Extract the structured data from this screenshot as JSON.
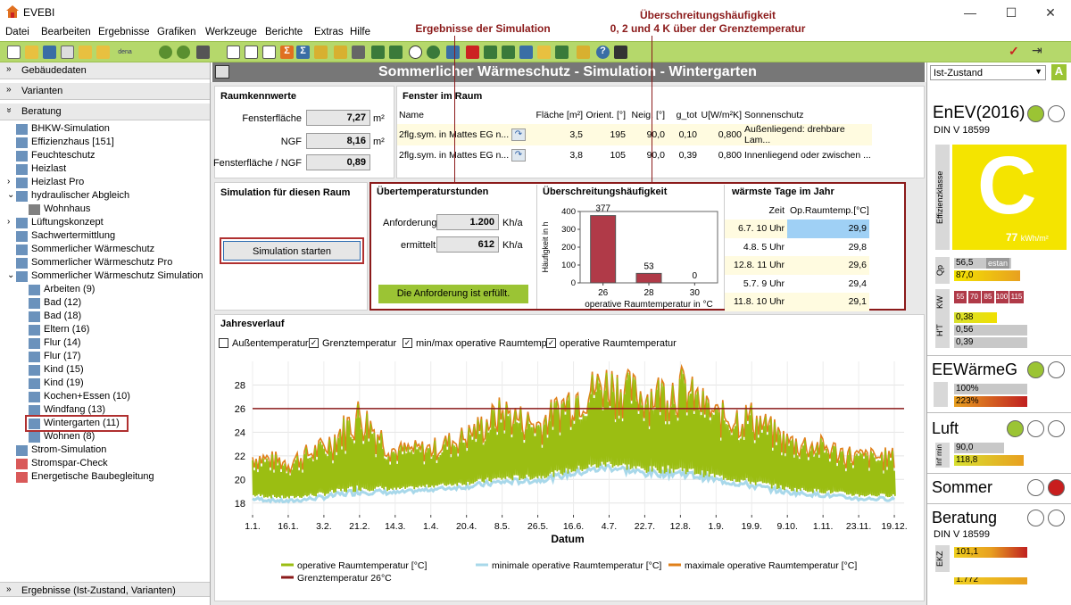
{
  "app": {
    "title": "EVEBI"
  },
  "menu": [
    "Datei",
    "Bearbeiten",
    "Ergebnisse",
    "Grafiken",
    "Werkzeuge",
    "Berichte",
    "Extras",
    "Hilfe"
  ],
  "sidebar": {
    "sections": {
      "gebaeudedaten": "Gebäudedaten",
      "varianten": "Varianten",
      "beratung": "Beratung",
      "ergebnisse": "Ergebnisse (Ist-Zustand, Varianten)"
    },
    "items": [
      {
        "label": "BHKW-Simulation"
      },
      {
        "label": "Effizienzhaus [151]"
      },
      {
        "label": "Feuchteschutz"
      },
      {
        "label": "Heizlast"
      },
      {
        "label": "Heizlast Pro"
      },
      {
        "label": "hydraulischer Abgleich"
      },
      {
        "label": "Wohnhaus"
      },
      {
        "label": "Lüftungskonzept"
      },
      {
        "label": "Sachwertermittlung"
      },
      {
        "label": "Sommerlicher Wärmeschutz"
      },
      {
        "label": "Sommerlicher Wärmeschutz Pro"
      },
      {
        "label": "Sommerlicher Wärmeschutz Simulation"
      },
      {
        "label": "Arbeiten (9)"
      },
      {
        "label": "Bad (12)"
      },
      {
        "label": "Bad (18)"
      },
      {
        "label": "Eltern (16)"
      },
      {
        "label": "Flur (14)"
      },
      {
        "label": "Flur (17)"
      },
      {
        "label": "Kind (15)"
      },
      {
        "label": "Kind (19)"
      },
      {
        "label": "Kochen+Essen (10)"
      },
      {
        "label": "Windfang (13)"
      },
      {
        "label": "Wintergarten (11)"
      },
      {
        "label": "Wohnen (8)"
      },
      {
        "label": "Strom-Simulation"
      },
      {
        "label": "Stromspar-Check"
      },
      {
        "label": "Energetische Baubegleitung"
      }
    ]
  },
  "main": {
    "title": "Sommerlicher Wärmeschutz - Simulation - Wintergarten",
    "annotations": {
      "ergebnisse": "Ergebnisse der Simulation",
      "haeufigkeit_line1": "Überschreitungshäufigkeit",
      "haeufigkeit_line2": "0, 2 und 4 K über der Grenztemperatur"
    },
    "raumkennwerte": {
      "title": "Raumkennwerte",
      "rows": [
        {
          "label": "Fensterfläche",
          "value": "7,27",
          "unit": "m²"
        },
        {
          "label": "NGF",
          "value": "8,16",
          "unit": "m²"
        },
        {
          "label": "Fensterfläche / NGF",
          "value": "0,89",
          "unit": ""
        }
      ]
    },
    "fenster": {
      "title": "Fenster im Raum",
      "headers": [
        "Name",
        "",
        "Fläche [m²]",
        "Orient. [°]",
        "Neig. [°]",
        "g_tot",
        "U[W/m²K]",
        "Sonnenschutz"
      ],
      "rows": [
        [
          "2flg.sym. in Mattes EG n...",
          "",
          "3,5",
          "195",
          "90,0",
          "0,10",
          "0,800",
          "Außenliegend: drehbare Lam..."
        ],
        [
          "2flg.sym. in Mattes EG n...",
          "",
          "3,8",
          "105",
          "90,0",
          "0,39",
          "0,800",
          "Innenliegend oder zwischen ..."
        ]
      ]
    },
    "simulation": {
      "title": "Simulation für diesen Raum",
      "button": "Simulation starten"
    },
    "uebertemperatur": {
      "title": "Übertemperaturstunden",
      "anforderung_label": "Anforderung",
      "anforderung_value": "1.200",
      "anforderung_unit": "Kh/a",
      "ermittelt_label": "ermittelt",
      "ermittelt_value": "612",
      "ermittelt_unit": "Kh/a",
      "status": "Die Anforderung ist erfüllt."
    },
    "haeufigkeit": {
      "title": "Überschreitungshäufigkeit"
    },
    "waermste": {
      "title": "wärmste Tage im Jahr",
      "headers": [
        "Zeit",
        "Op.Raumtemp.[°C]"
      ],
      "rows": [
        [
          "6.7. 10 Uhr",
          "29,9"
        ],
        [
          "4.8. 5 Uhr",
          "29,8"
        ],
        [
          "12.8. 11 Uhr",
          "29,6"
        ],
        [
          "5.7. 9 Uhr",
          "29,4"
        ],
        [
          "11.8. 10 Uhr",
          "29,1"
        ]
      ]
    },
    "jahresverlauf": {
      "title": "Jahresverlauf",
      "checkboxes": [
        {
          "label": "Außentemperatur",
          "checked": false
        },
        {
          "label": "Grenztemperatur",
          "checked": true
        },
        {
          "label": "min/max operative Raumtemp.",
          "checked": true
        },
        {
          "label": "operative Raumtemperatur",
          "checked": true
        }
      ]
    }
  },
  "chart_data": [
    {
      "type": "bar",
      "categories": [
        "26",
        "28",
        "30"
      ],
      "values": [
        377,
        53,
        0
      ],
      "xlabel": "operative Raumtemperatur in °C",
      "ylabel": "Häufigkeit in h",
      "ylim": [
        0,
        400
      ],
      "yticks": [
        "0",
        "100",
        "200",
        "300",
        "400"
      ],
      "color": "#b03a48",
      "data_labels": [
        "377",
        "53",
        "0"
      ]
    },
    {
      "type": "line",
      "xlabel": "Datum",
      "ylabel": "",
      "ylim": [
        17,
        30
      ],
      "yticks": [
        "18",
        "20",
        "22",
        "24",
        "26",
        "28"
      ],
      "xticks": [
        "1.1.",
        "16.1.",
        "3.2.",
        "21.2.",
        "14.3.",
        "1.4.",
        "20.4.",
        "8.5.",
        "26.5.",
        "16.6.",
        "4.7.",
        "22.7.",
        "12.8.",
        "1.9.",
        "19.9.",
        "9.10.",
        "1.11.",
        "23.11.",
        "19.12."
      ],
      "grenztemperatur": 26,
      "series": [
        {
          "name": "operative Raumtemperatur [°C]",
          "color": "#9bbe12"
        },
        {
          "name": "minimale operative Raumtemperatur [°C]",
          "color": "#a8d8ea"
        },
        {
          "name": "maximale operative Raumtemperatur [°C]",
          "color": "#e0801a"
        },
        {
          "name": "Grenztemperatur 26°C",
          "color": "#8b1a1a"
        }
      ],
      "profile": [
        {
          "x": "1.1.",
          "min": 18.5,
          "max": 22.5
        },
        {
          "x": "16.1.",
          "min": 18.3,
          "max": 22.0
        },
        {
          "x": "3.2.",
          "min": 18.6,
          "max": 23.5
        },
        {
          "x": "21.2.",
          "min": 19.0,
          "max": 27.0
        },
        {
          "x": "14.3.",
          "min": 19.0,
          "max": 23.0
        },
        {
          "x": "1.4.",
          "min": 19.3,
          "max": 23.2
        },
        {
          "x": "20.4.",
          "min": 19.5,
          "max": 24.5
        },
        {
          "x": "8.5.",
          "min": 19.8,
          "max": 27.0
        },
        {
          "x": "26.5.",
          "min": 20.0,
          "max": 25.5
        },
        {
          "x": "16.6.",
          "min": 20.5,
          "max": 28.5
        },
        {
          "x": "4.7.",
          "min": 21.0,
          "max": 29.9
        },
        {
          "x": "22.7.",
          "min": 20.5,
          "max": 28.5
        },
        {
          "x": "12.8.",
          "min": 20.5,
          "max": 29.6
        },
        {
          "x": "1.9.",
          "min": 20.0,
          "max": 26.5
        },
        {
          "x": "19.9.",
          "min": 19.5,
          "max": 26.5
        },
        {
          "x": "9.10.",
          "min": 19.0,
          "max": 24.0
        },
        {
          "x": "1.11.",
          "min": 18.8,
          "max": 23.5
        },
        {
          "x": "23.11.",
          "min": 18.5,
          "max": 22.5
        },
        {
          "x": "19.12.",
          "min": 18.5,
          "max": 22.5
        }
      ]
    }
  ],
  "right": {
    "variant": "Ist-Zustand",
    "enev": {
      "title": "EnEV(2016)",
      "sub": "DIN V 18599",
      "class": "C",
      "value": "77",
      "unit": "kWh/m²",
      "efficiency_label": "Effizienzklasse"
    },
    "qp": {
      "label": "Qp",
      "bars": [
        "56,5",
        "87,0"
      ],
      "tag": "estan"
    },
    "kw": {
      "label": "KW",
      "values": [
        "55",
        "70",
        "85",
        "100",
        "115"
      ]
    },
    "ht": {
      "label": "H'T",
      "bars": [
        "0,38",
        "0,56",
        "0,39"
      ]
    },
    "eewaerme": {
      "title": "EEWärmeG",
      "bars": [
        "100%",
        "223%"
      ]
    },
    "luft": {
      "title": "Luft",
      "label": "Inf min",
      "bars": [
        "90,0",
        "118,8"
      ]
    },
    "sommer": {
      "title": "Sommer"
    },
    "beratung": {
      "title": "Beratung",
      "sub": "DIN V 18599",
      "label": "EKZ",
      "bars": [
        "101,1",
        "1.772"
      ]
    }
  }
}
